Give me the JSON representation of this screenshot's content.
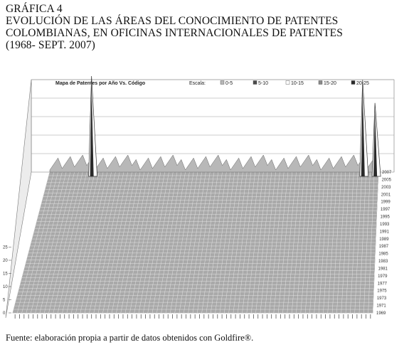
{
  "caption": {
    "label": "GRÁFICA 4",
    "line1": "EVOLUCIÓN DE LAS ÁREAS DEL CONOCIMIENTO DE PATENTES",
    "line2": "COLOMBIANAS, EN OFICINAS INTERNACIONALES DE PATENTES",
    "line3": "(1968- SEPT. 2007)"
  },
  "source": "Fuente: elaboración propia a partir de datos obtenidos con Goldfire®.",
  "chart_data": {
    "type": "surface",
    "title": "Mapa de Patentes por Año Vs. Código",
    "legend_title": "Escala:",
    "legend": [
      {
        "label": "0-5",
        "color": "#b8b8b8"
      },
      {
        "label": "5-10",
        "color": "#4a4a4a"
      },
      {
        "label": "10-15",
        "color": "#ffffff"
      },
      {
        "label": "15-20",
        "color": "#8a8a8a"
      },
      {
        "label": "20-25",
        "color": "#2a2a2a"
      }
    ],
    "zlim": [
      0,
      25
    ],
    "z_ticks": [
      "0",
      "5",
      "10",
      "15",
      "20",
      "25"
    ],
    "years": [
      "2007",
      "2005",
      "2003",
      "2001",
      "1999",
      "1997",
      "1995",
      "1993",
      "1991",
      "1989",
      "1987",
      "1985",
      "1983",
      "1981",
      "1979",
      "1977",
      "1975",
      "1973",
      "1971",
      "1969"
    ],
    "code_count": 80,
    "peaks": [
      {
        "code_index": 10,
        "year": "2007",
        "value": 25
      },
      {
        "code_index": 76,
        "year": "2007",
        "value": 24
      },
      {
        "code_index": 79,
        "year": "2007",
        "value": 18
      }
    ]
  }
}
